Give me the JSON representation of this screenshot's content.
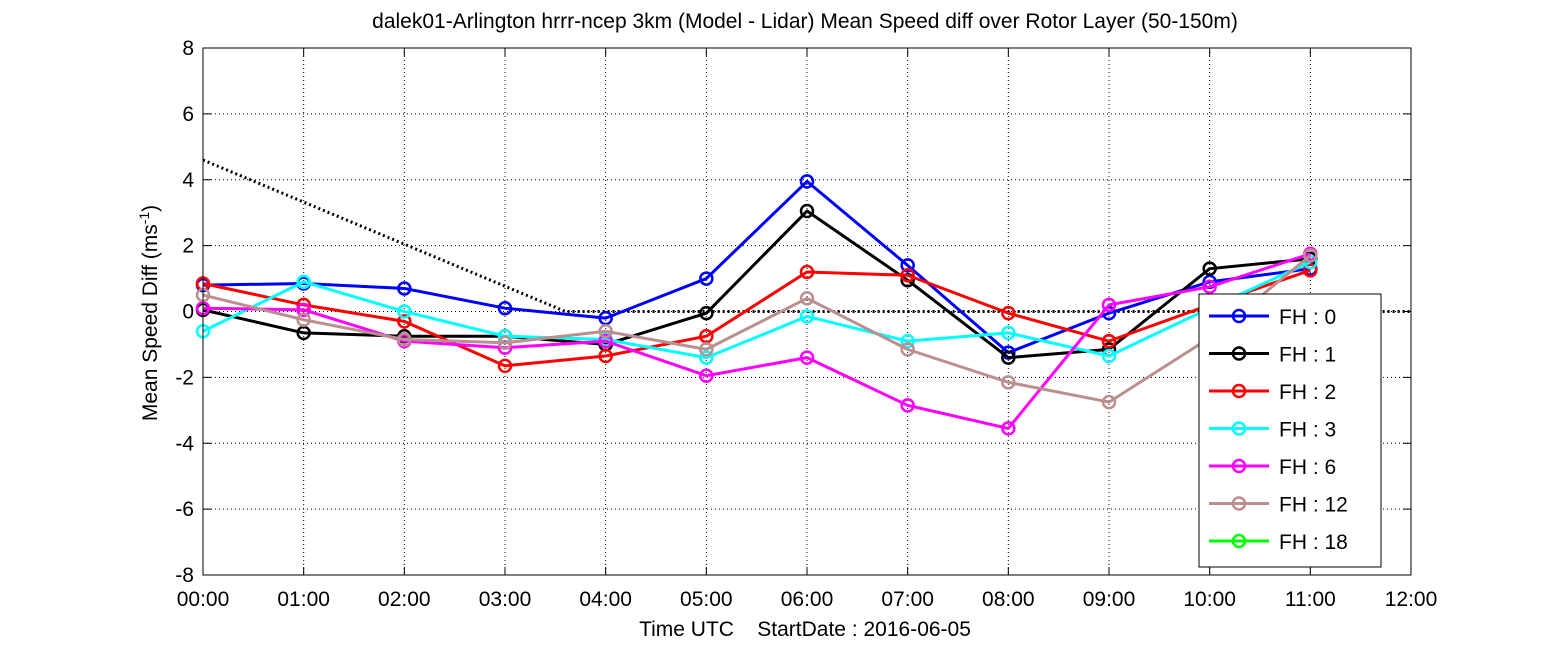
{
  "chart_data": {
    "type": "line",
    "title": "dalek01-Arlington hrrr-ncep 3km (Model - Lidar) Mean Speed diff over Rotor Layer (50-150m)",
    "xlabel": "Time UTC    StartDate : 2016-06-05",
    "ylabel": {
      "main": "Mean Speed Diff (ms",
      "sup": "-1",
      "close": ")"
    },
    "x_ticks": [
      "00:00",
      "01:00",
      "02:00",
      "03:00",
      "04:00",
      "05:00",
      "06:00",
      "07:00",
      "08:00",
      "09:00",
      "10:00",
      "11:00",
      "12:00"
    ],
    "y_ticks": [
      "-8",
      "-6",
      "-4",
      "-2",
      "0",
      "2",
      "4",
      "6",
      "8"
    ],
    "xlim": [
      0,
      12
    ],
    "ylim": [
      -8,
      8
    ],
    "grid": "dotted",
    "legend_position": "bottom-right",
    "reference_lines": [
      {
        "style": "dotted",
        "color": "#000000",
        "x": [
          0,
          3.6,
          12
        ],
        "y": [
          4.6,
          0,
          0
        ]
      }
    ],
    "series": [
      {
        "name": "FH : 0",
        "color": "#0000ff",
        "x": [
          0,
          1,
          2,
          3,
          4,
          5,
          6,
          7,
          8,
          9,
          10,
          11
        ],
        "values": [
          0.8,
          0.85,
          0.7,
          0.1,
          -0.2,
          1.0,
          3.95,
          1.4,
          -1.25,
          -0.05,
          0.9,
          1.3
        ]
      },
      {
        "name": "FH : 1",
        "color": "#000000",
        "x": [
          0,
          1,
          2,
          3,
          4,
          5,
          6,
          7,
          8,
          9,
          10,
          11
        ],
        "values": [
          0.05,
          -0.65,
          -0.75,
          -0.75,
          -1.0,
          -0.05,
          3.05,
          0.95,
          -1.4,
          -1.15,
          1.3,
          1.6
        ]
      },
      {
        "name": "FH : 2",
        "color": "#ff0000",
        "x": [
          0,
          1,
          2,
          3,
          4,
          5,
          6,
          7,
          8,
          9,
          10,
          11
        ],
        "values": [
          0.85,
          0.2,
          -0.3,
          -1.65,
          -1.35,
          -0.75,
          1.2,
          1.1,
          -0.05,
          -0.9,
          0.2,
          1.25
        ]
      },
      {
        "name": "FH : 3",
        "color": "#00ffff",
        "x": [
          0,
          1,
          2,
          3,
          4,
          5,
          6,
          7,
          8,
          9,
          10,
          11
        ],
        "values": [
          -0.6,
          0.9,
          0.0,
          -0.75,
          -0.85,
          -1.4,
          -0.15,
          -0.9,
          -0.65,
          -1.35,
          0.1,
          1.5
        ]
      },
      {
        "name": "FH : 6",
        "color": "#ff00ff",
        "x": [
          0,
          1,
          2,
          3,
          4,
          5,
          6,
          7,
          8,
          9,
          10,
          11
        ],
        "values": [
          0.1,
          0.05,
          -0.9,
          -1.1,
          -0.9,
          -1.95,
          -1.4,
          -2.85,
          -3.55,
          0.2,
          0.75,
          1.75
        ]
      },
      {
        "name": "FH : 12",
        "color": "#bc8f8f",
        "x": [
          0,
          1,
          2,
          3,
          4,
          5,
          6,
          7,
          8,
          9,
          10,
          11
        ],
        "values": [
          0.5,
          -0.25,
          -0.85,
          -0.95,
          -0.6,
          -1.15,
          0.4,
          -1.15,
          -2.15,
          -2.75,
          -0.8,
          1.7
        ]
      },
      {
        "name": "FH : 18",
        "color": "#00ff00",
        "x": [],
        "values": []
      }
    ]
  }
}
